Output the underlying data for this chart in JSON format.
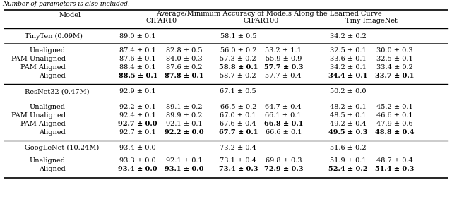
{
  "title_top": "Number of parameters is also included.",
  "header1": "Model",
  "header2": "Average/Minimum Accuracy of Models Along the Learned Curve",
  "subheader_cifar10": "CIFAR10",
  "subheader_cifar100": "CIFAR100",
  "subheader_tiny": "Tiny ImageNet",
  "rows": [
    {
      "model": "TinyTen (0.09M)",
      "type": "main",
      "c10_avg": "89.0 ± 0.1",
      "c10_min": "",
      "c100_avg": "58.1 ± 0.5",
      "c100_min": "",
      "tin_avg": "34.2 ± 0.2",
      "tin_min": ""
    },
    {
      "model": "Unaligned",
      "type": "sub",
      "c10_avg": "87.4 ± 0.1",
      "c10_min": "82.8 ± 0.5",
      "c100_avg": "56.0 ± 0.2",
      "c100_min": "53.2 ± 1.1",
      "tin_avg": "32.5 ± 0.1",
      "tin_min": "30.0 ± 0.3"
    },
    {
      "model": "PAM Unaligned",
      "type": "sub",
      "c10_avg": "87.6 ± 0.1",
      "c10_min": "84.0 ± 0.3",
      "c100_avg": "57.3 ± 0.2",
      "c100_min": "55.9 ± 0.9",
      "tin_avg": "33.6 ± 0.1",
      "tin_min": "32.5 ± 0.1"
    },
    {
      "model": "PAM Aligned",
      "type": "sub",
      "c10_avg": "88.4 ± 0.1",
      "c10_min": "87.6 ± 0.2",
      "c100_avg": "58.8 ± 0.1",
      "c100_min": "57.7 ± 0.3",
      "tin_avg": "34.2 ± 0.1",
      "tin_min": "33.4 ± 0.2",
      "bold_c100_avg": true,
      "bold_c100_min": true
    },
    {
      "model": "Aligned",
      "type": "sub",
      "c10_avg": "88.5 ± 0.1",
      "c10_min": "87.8 ± 0.1",
      "c100_avg": "58.7 ± 0.2",
      "c100_min": "57.7 ± 0.4",
      "tin_avg": "34.4 ± 0.1",
      "tin_min": "33.7 ± 0.1",
      "bold_c10_avg": true,
      "bold_c10_min": true,
      "bold_tin_avg": true,
      "bold_tin_min": true
    },
    {
      "model": "ResNet32 (0.47M)",
      "type": "main",
      "c10_avg": "92.9 ± 0.1",
      "c10_min": "",
      "c100_avg": "67.1 ± 0.5",
      "c100_min": "",
      "tin_avg": "50.2 ± 0.0",
      "tin_min": ""
    },
    {
      "model": "Unaligned",
      "type": "sub",
      "c10_avg": "92.2 ± 0.1",
      "c10_min": "89.1 ± 0.2",
      "c100_avg": "66.5 ± 0.2",
      "c100_min": "64.7 ± 0.4",
      "tin_avg": "48.2 ± 0.1",
      "tin_min": "45.2 ± 0.1"
    },
    {
      "model": "PAM Unaligned",
      "type": "sub",
      "c10_avg": "92.4 ± 0.1",
      "c10_min": "89.9 ± 0.2",
      "c100_avg": "67.0 ± 0.1",
      "c100_min": "66.1 ± 0.1",
      "tin_avg": "48.5 ± 0.1",
      "tin_min": "46.6 ± 0.1"
    },
    {
      "model": "PAM Aligned",
      "type": "sub",
      "c10_avg": "92.7 ± 0.0",
      "c10_min": "92.1 ± 0.1",
      "c100_avg": "67.6 ± 0.4",
      "c100_min": "66.8 ± 0.1",
      "tin_avg": "49.2 ± 0.4",
      "tin_min": "47.9 ± 0.6",
      "bold_c10_avg": true,
      "bold_c100_min": true
    },
    {
      "model": "Aligned",
      "type": "sub",
      "c10_avg": "92.7 ± 0.1",
      "c10_min": "92.2 ± 0.0",
      "c100_avg": "67.7 ± 0.1",
      "c100_min": "66.6 ± 0.1",
      "tin_avg": "49.5 ± 0.3",
      "tin_min": "48.8 ± 0.4",
      "bold_c10_min": true,
      "bold_c100_avg": true,
      "bold_tin_avg": true,
      "bold_tin_min": true
    },
    {
      "model": "GoogLeNet (10.24M)",
      "type": "main",
      "c10_avg": "93.4 ± 0.0",
      "c10_min": "",
      "c100_avg": "73.2 ± 0.4",
      "c100_min": "",
      "tin_avg": "51.6 ± 0.2",
      "tin_min": ""
    },
    {
      "model": "Unaligned",
      "type": "sub",
      "c10_avg": "93.3 ± 0.0",
      "c10_min": "92.1 ± 0.1",
      "c100_avg": "73.1 ± 0.4",
      "c100_min": "69.8 ± 0.3",
      "tin_avg": "51.9 ± 0.1",
      "tin_min": "48.7 ± 0.4"
    },
    {
      "model": "Aligned",
      "type": "sub",
      "c10_avg": "93.4 ± 0.0",
      "c10_min": "93.1 ± 0.0",
      "c100_avg": "73.4 ± 0.3",
      "c100_min": "72.9 ± 0.3",
      "tin_avg": "52.4 ± 0.2",
      "tin_min": "51.4 ± 0.3",
      "bold_c10_avg": true,
      "bold_c10_min": true,
      "bold_c100_avg": true,
      "bold_c100_min": true,
      "bold_tin_avg": true,
      "bold_tin_min": true
    }
  ],
  "col_x": {
    "model": 0.155,
    "c10_avg": 0.305,
    "c10_min": 0.408,
    "c100_avg": 0.527,
    "c100_min": 0.627,
    "tin_avg": 0.77,
    "tin_min": 0.873
  },
  "figsize": [
    6.4,
    2.79
  ],
  "dpi": 100,
  "font_size": 7.0
}
